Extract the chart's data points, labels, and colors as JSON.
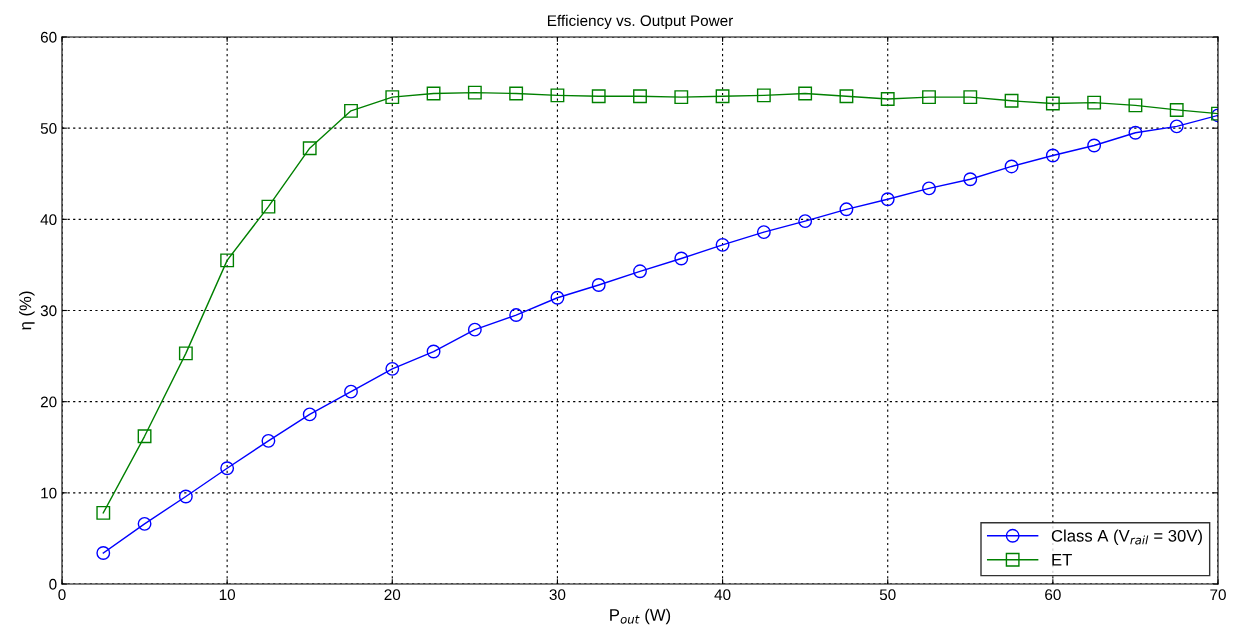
{
  "chart_data": {
    "type": "line",
    "title": "Efficiency vs. Output Power",
    "xlabel": "P$_{out}$ (W)",
    "ylabel": "η (%)",
    "x": [
      2.5,
      5,
      7.5,
      10,
      12.5,
      15,
      17.5,
      20,
      22.5,
      25,
      27.5,
      30,
      32.5,
      35,
      37.5,
      40,
      42.5,
      45,
      47.5,
      50,
      52.5,
      55,
      57.5,
      60,
      62.5,
      65,
      67.5,
      70
    ],
    "series": [
      {
        "name": "Class A (V$_{rail}$ = 30V)",
        "color": "#0000ff",
        "marker": "circle",
        "values": [
          3.4,
          6.6,
          9.6,
          12.7,
          15.7,
          18.6,
          21.1,
          23.6,
          25.5,
          27.9,
          29.5,
          31.4,
          32.8,
          34.3,
          35.7,
          37.2,
          38.6,
          39.8,
          41.1,
          42.2,
          43.4,
          44.4,
          45.8,
          47.0,
          48.1,
          49.5,
          50.2,
          51.4
        ]
      },
      {
        "name": "ET",
        "color": "#008000",
        "marker": "square",
        "values": [
          7.8,
          16.2,
          25.3,
          35.5,
          41.4,
          47.8,
          51.9,
          53.4,
          53.8,
          53.9,
          53.8,
          53.6,
          53.5,
          53.5,
          53.4,
          53.5,
          53.6,
          53.8,
          53.5,
          53.2,
          53.4,
          53.4,
          53.0,
          52.7,
          52.8,
          52.5,
          52.0,
          51.6
        ]
      }
    ],
    "xlim": [
      0,
      70
    ],
    "xticks": [
      0,
      10,
      20,
      30,
      40,
      50,
      60,
      70
    ],
    "ylim": [
      0,
      60
    ],
    "yticks": [
      0,
      10,
      20,
      30,
      40,
      50,
      60
    ],
    "grid": true,
    "legend": "bottom right",
    "line_style": "solid"
  }
}
